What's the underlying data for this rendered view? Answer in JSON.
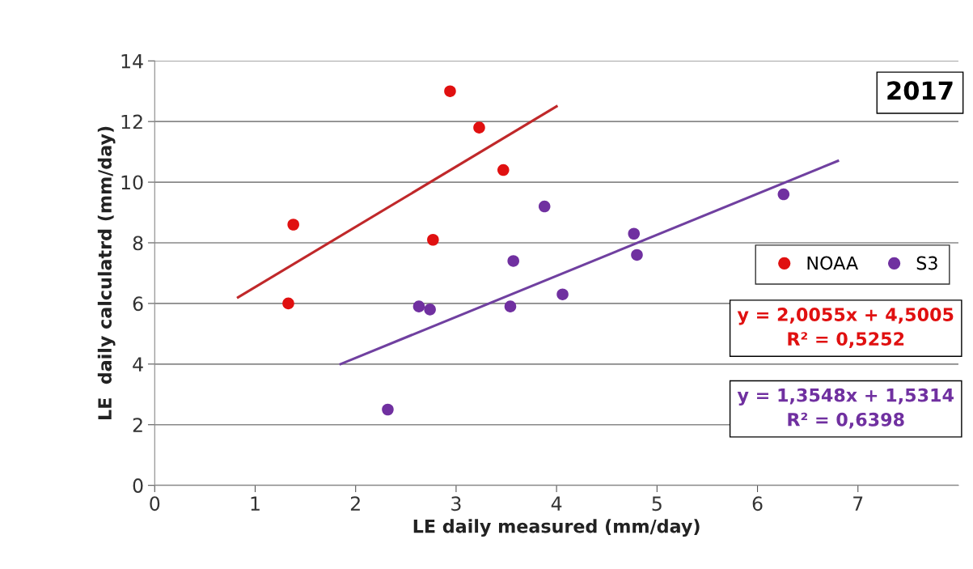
{
  "chart_data": {
    "type": "scatter",
    "xlabel": "LE daily measured (mm/day)",
    "ylabel": "LE  daily calculatrd (mm/day)",
    "xlim": [
      0,
      8
    ],
    "xticks": [
      0,
      1,
      2,
      3,
      4,
      5,
      6,
      7
    ],
    "ylim": [
      0,
      14
    ],
    "yticks": [
      0,
      2,
      4,
      6,
      8,
      10,
      12,
      14
    ],
    "grid": "y",
    "legend": "right",
    "series": [
      {
        "name": "NOAA",
        "color": "#e01010",
        "marker": "circle",
        "x": [
          1.33,
          1.38,
          2.77,
          2.94,
          3.23,
          3.47
        ],
        "values": [
          6.0,
          8.6,
          8.1,
          13.0,
          11.8,
          10.4
        ]
      },
      {
        "name": "S3",
        "color": "#7030a0",
        "marker": "circle",
        "x": [
          2.32,
          2.63,
          2.74,
          3.54,
          3.57,
          3.88,
          4.06,
          4.77,
          4.8,
          6.26
        ],
        "values": [
          2.5,
          5.9,
          5.8,
          5.9,
          7.4,
          9.2,
          6.3,
          8.3,
          7.6,
          9.6
        ]
      },
      {
        "type": "line",
        "color": "#c0282a",
        "x": [
          0.83,
          4.0
        ],
        "values": [
          6.2,
          12.5
        ]
      },
      {
        "type": "line",
        "color": "#7040a0",
        "x": [
          1.85,
          6.8
        ],
        "values": [
          4.0,
          10.7
        ]
      }
    ],
    "annotations": [
      "2017",
      "y = 2,0055x + 4,5005\nR² = 0,5252",
      "y = 1,3548x + 1,5314\nR² = 0,6398"
    ]
  }
}
